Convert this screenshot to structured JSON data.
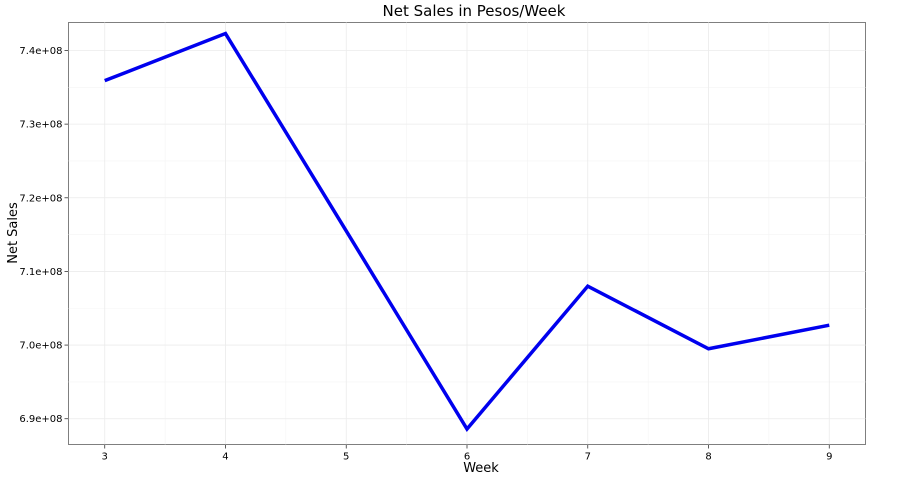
{
  "chart_data": {
    "type": "line",
    "title": "Net Sales in Pesos/Week",
    "xlabel": "Week",
    "ylabel": "Net Sales",
    "x": [
      3,
      4,
      5,
      6,
      7,
      8,
      9
    ],
    "series": [
      {
        "values": [
          735900000,
          742300000,
          715500000,
          688600000,
          708000000,
          699500000,
          702700000
        ],
        "color": "#0000ee"
      }
    ],
    "xlim": [
      2.7,
      9.3
    ],
    "ylim": [
      686500000,
      743800000
    ],
    "xticks": [
      3,
      4,
      5,
      6,
      7,
      8,
      9
    ],
    "xtick_labels": [
      "3",
      "4",
      "5",
      "6",
      "7",
      "8",
      "9"
    ],
    "yticks": [
      690000000,
      700000000,
      710000000,
      720000000,
      730000000,
      740000000
    ],
    "ytick_labels": [
      "6.9e+08",
      "7.0e+08",
      "7.1e+08",
      "7.2e+08",
      "7.3e+08",
      "7.4e+08"
    ],
    "grid": true,
    "legend": "none"
  }
}
